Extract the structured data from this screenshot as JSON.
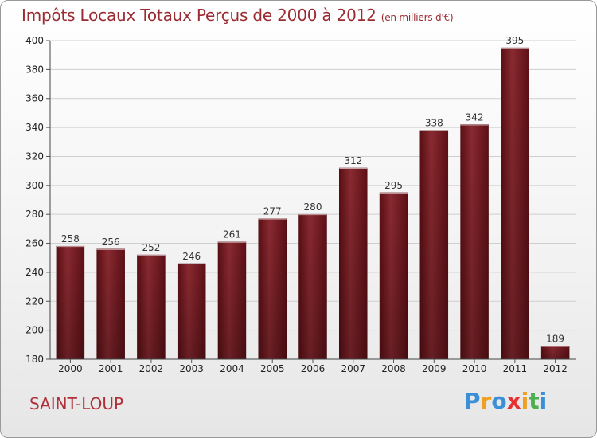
{
  "header": {
    "title": "Impôts Locaux Totaux Perçus de 2000 à 2012",
    "subtitle": "(en milliers d'€)"
  },
  "footer": {
    "city": "SAINT-LOUP",
    "logo_letters": [
      "P",
      "r",
      "o",
      "x",
      "i",
      "t",
      "i"
    ],
    "logo_colors": [
      "#3a8fd8",
      "#f0a020",
      "#3a8fd8",
      "#e83030",
      "#f0a020",
      "#4cb050",
      "#3a8fd8"
    ]
  },
  "chart_data": {
    "type": "bar",
    "title": "Impôts Locaux Totaux Perçus de 2000 à 2012",
    "subtitle": "(en milliers d'€)",
    "categories": [
      "2000",
      "2001",
      "2002",
      "2003",
      "2004",
      "2005",
      "2006",
      "2007",
      "2008",
      "2009",
      "2010",
      "2011",
      "2012"
    ],
    "values": [
      258,
      256,
      252,
      246,
      261,
      277,
      280,
      312,
      295,
      338,
      342,
      395,
      189
    ],
    "data_labels": [
      "258",
      "256",
      "252",
      "246",
      "261",
      "277",
      "280",
      "312",
      "295",
      "338",
      "342",
      "395",
      "189"
    ],
    "ylim": [
      180,
      400
    ],
    "yticks": [
      180,
      200,
      220,
      240,
      260,
      280,
      300,
      320,
      340,
      360,
      380,
      400
    ],
    "ytick_labels": [
      "180",
      "200",
      "220",
      "240",
      "260",
      "280",
      "300",
      "320",
      "340",
      "360",
      "380",
      "400"
    ],
    "xlabel": "",
    "ylabel": "",
    "grid": true,
    "bar_color": "#7a1c22"
  }
}
